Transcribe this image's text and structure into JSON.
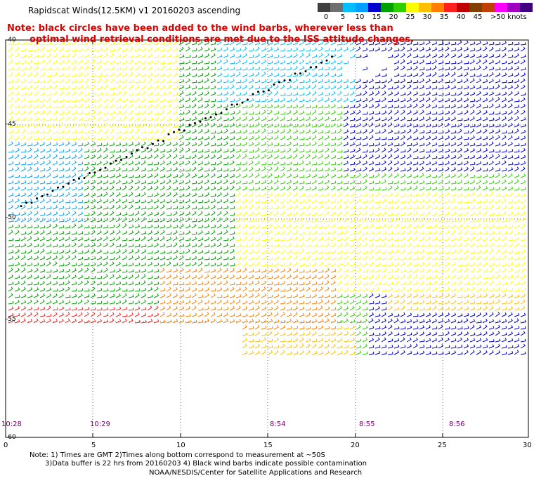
{
  "title": "Rapidscat Winds(12.5KM) v1 20160203 ascending",
  "note": {
    "line1": "Note: black circles have been added to the wind barbs, wherever less than",
    "line2": "optimal wind retrieval conditions are met due to the ISS attitude changes."
  },
  "legend": {
    "colors": [
      "#404040",
      "#6f6f6f",
      "#00bfff",
      "#00a0ff",
      "#0000d0",
      "#00a000",
      "#30d000",
      "#ffff00",
      "#ffc000",
      "#ff8000",
      "#ff2020",
      "#c00000",
      "#804000",
      "#c04000",
      "#ff00ff",
      "#a000c0",
      "#400080"
    ],
    "labels": [
      "0",
      "5",
      "10",
      "15",
      "20",
      "25",
      "30",
      "35",
      "40",
      "45",
      ">50 knots"
    ]
  },
  "y_axis_labels": [
    "-40",
    "-45",
    "-50",
    "-55",
    "-60"
  ],
  "x_axis_labels": [
    "0",
    "5",
    "10",
    "15",
    "20",
    "25",
    "30"
  ],
  "time_labels": [
    "10:28",
    "10:29",
    "8:54",
    "8:55",
    "8:56"
  ],
  "footer": {
    "line1": "Note: 1) Times are GMT 2)Times along bottom correspond to measurement at ~50S",
    "line2": "3)Data buffer is 22 hrs from 20160203 4) Black wind barbs indicate possible contamination",
    "line3": "NOAA/NESDIS/Center for Satellite Applications and Research"
  }
}
